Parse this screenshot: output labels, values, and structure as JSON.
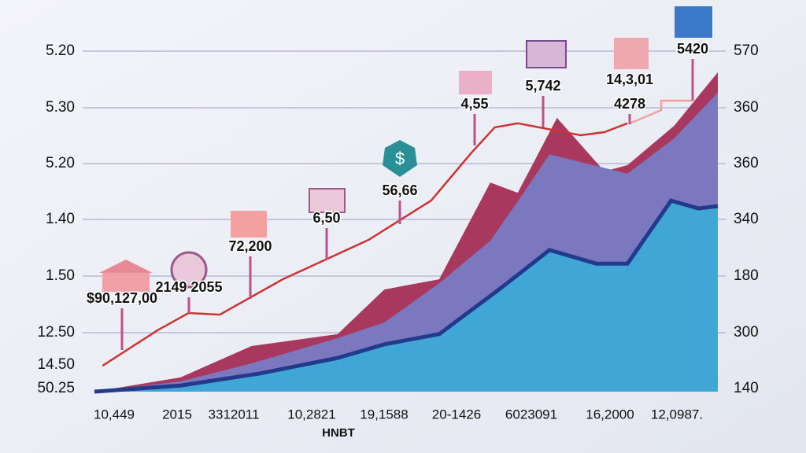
{
  "chart_data": {
    "type": "area",
    "left_axis_labels": [
      "5.20",
      "5.30",
      "5.20",
      "1.40",
      "1.50",
      "12.50",
      "14.50",
      "50.25"
    ],
    "right_axis_labels": [
      "570",
      "360",
      "360",
      "340",
      "180",
      "300",
      "140"
    ],
    "x_labels": [
      "10,449",
      "2015",
      "3312011",
      "10,2821",
      "19,1588",
      "20-1426",
      "6023091",
      "16,2000",
      "12,0987."
    ],
    "x_axis_title": "HNBT",
    "xlim": [
      0,
      100
    ],
    "ylim": [
      0,
      100
    ],
    "series": [
      {
        "color": "#a8385e",
        "x": [
          0,
          13.8,
          25.2,
          39,
          46.5,
          55.3,
          63.5,
          67.9,
          74.2,
          81.8,
          85.5,
          93,
          100
        ],
        "values": [
          0,
          4.2,
          13.4,
          16.9,
          30,
          33,
          61.4,
          58.4,
          80.4,
          64.7,
          66.5,
          78.1,
          93.8
        ]
      },
      {
        "color": "#7b78c0",
        "x": [
          0,
          13.8,
          25.2,
          39,
          46.5,
          55.3,
          63.5,
          67.9,
          73,
          80.5,
          85.5,
          93,
          100
        ],
        "values": [
          0,
          3,
          8.3,
          15.7,
          20.3,
          31.8,
          44.3,
          55.9,
          69.7,
          66.3,
          64,
          74.4,
          87.8
        ]
      },
      {
        "color": "#3fa6d6",
        "x": [
          0,
          13.8,
          26.4,
          39,
          46.5,
          55.3,
          65.4,
          73,
          80.5,
          85.5,
          92.5,
          96.9,
          100
        ],
        "values": [
          0,
          1.8,
          5.3,
          9.9,
          13.9,
          16.9,
          30.7,
          41.6,
          37.6,
          37.6,
          56.1,
          53.8,
          54.5
        ]
      }
    ],
    "line": {
      "color": "#cc3333",
      "x": [
        1.3,
        10.1,
        15.1,
        20.1,
        30.2,
        44,
        54,
        60.4,
        64.2,
        67.9,
        78,
        81.8,
        85.5
      ],
      "values": [
        7.6,
        18,
        23.1,
        22.6,
        33,
        44.6,
        56.1,
        70,
        77.6,
        78.8,
        75.3,
        76.2,
        78.8
      ]
    },
    "annotations": [
      "$90,127,00",
      "2149 2055",
      "72,200",
      "6,50",
      "56,66",
      "4,55",
      "5,742",
      "14,3,01",
      "4278",
      "5420"
    ]
  }
}
